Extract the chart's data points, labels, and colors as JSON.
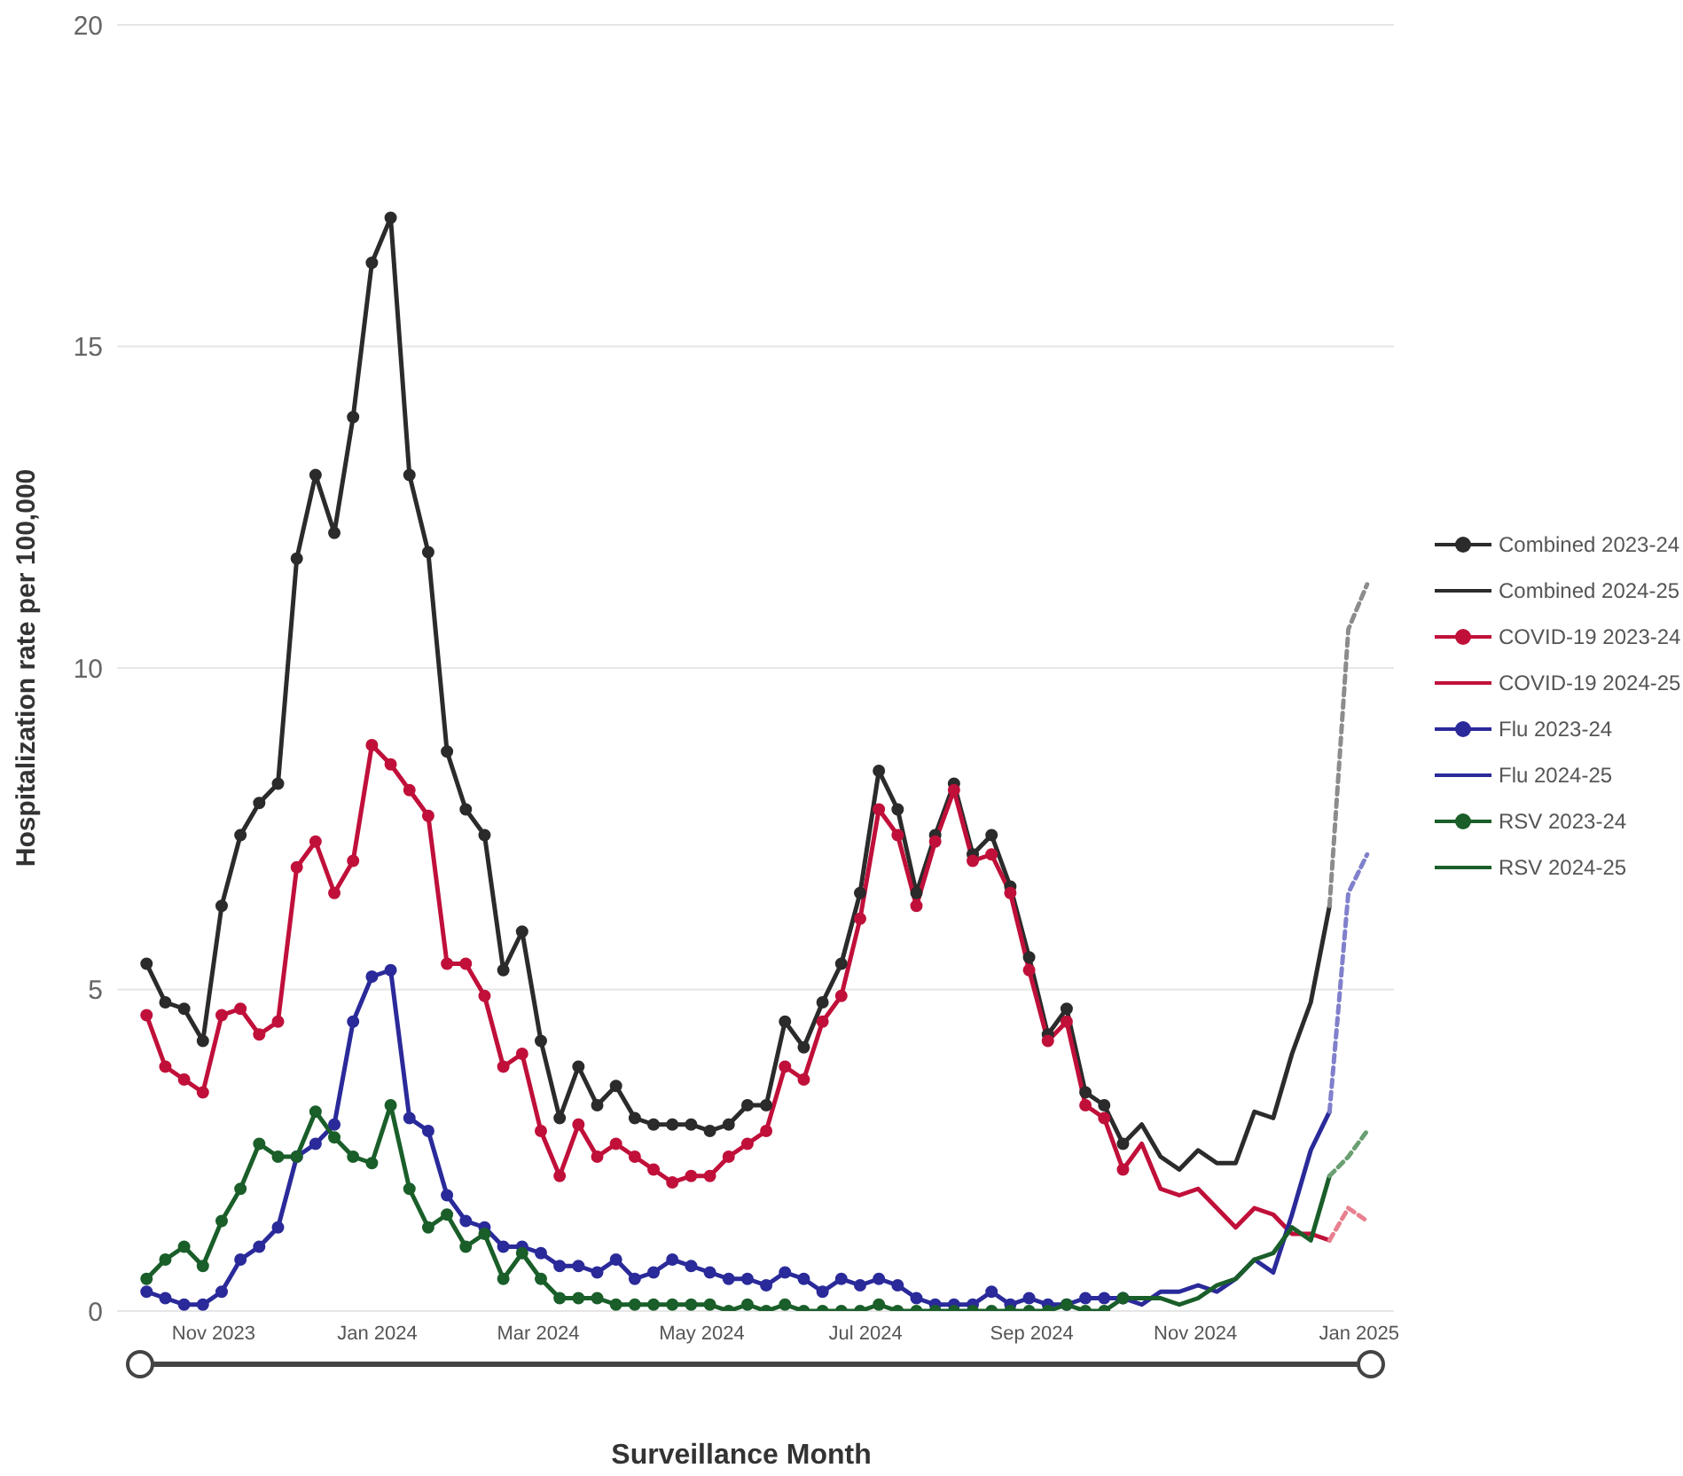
{
  "chart_data": {
    "type": "line",
    "xlabel": "Surveillance Month",
    "ylabel": "Hospitalization rate per 100,000",
    "xlim": [
      "2023-09-26",
      "2025-01-14"
    ],
    "xticks": [
      {
        "value": "2023-11-01",
        "label": "Nov 2023"
      },
      {
        "value": "2024-01-01",
        "label": "Jan 2024"
      },
      {
        "value": "2024-03-01",
        "label": "Mar 2024"
      },
      {
        "value": "2024-05-01",
        "label": "May 2024"
      },
      {
        "value": "2024-07-01",
        "label": "Jul 2024"
      },
      {
        "value": "2024-09-01",
        "label": "Sep 2024"
      },
      {
        "value": "2024-11-01",
        "label": "Nov 2024"
      },
      {
        "value": "2025-01-01",
        "label": "Jan 2025"
      }
    ],
    "ylim": [
      0,
      20
    ],
    "yticks": [
      0,
      5,
      10,
      15,
      20
    ],
    "grid": "y",
    "legend": "right",
    "series": [
      {
        "name": "Combined 2023-24",
        "color": "#2b2b2b",
        "marker": "circle",
        "line_style": "solid",
        "x": [
          "2023-10-07",
          "2023-10-14",
          "2023-10-21",
          "2023-10-28",
          "2023-11-04",
          "2023-11-11",
          "2023-11-18",
          "2023-11-25",
          "2023-12-02",
          "2023-12-09",
          "2023-12-16",
          "2023-12-23",
          "2023-12-30",
          "2024-01-06",
          "2024-01-13",
          "2024-01-20",
          "2024-01-27",
          "2024-02-03",
          "2024-02-10",
          "2024-02-17",
          "2024-02-24",
          "2024-03-02",
          "2024-03-09",
          "2024-03-16",
          "2024-03-23",
          "2024-03-30",
          "2024-04-06",
          "2024-04-13",
          "2024-04-20",
          "2024-04-27",
          "2024-05-04",
          "2024-05-11",
          "2024-05-18",
          "2024-05-25",
          "2024-06-01",
          "2024-06-08",
          "2024-06-15",
          "2024-06-22",
          "2024-06-29",
          "2024-07-06",
          "2024-07-13",
          "2024-07-20",
          "2024-07-27",
          "2024-08-03",
          "2024-08-10",
          "2024-08-17",
          "2024-08-24",
          "2024-08-31",
          "2024-09-07",
          "2024-09-14",
          "2024-09-21",
          "2024-09-28",
          "2024-10-05"
        ],
        "values": [
          5.4,
          4.8,
          4.7,
          4.2,
          6.3,
          7.4,
          7.9,
          8.2,
          11.7,
          13.0,
          12.1,
          13.9,
          16.3,
          17.0,
          13.0,
          11.8,
          8.7,
          7.8,
          7.4,
          5.3,
          5.9,
          4.2,
          3.0,
          3.8,
          3.2,
          3.5,
          3.0,
          2.9,
          2.9,
          2.9,
          2.8,
          2.9,
          3.2,
          3.2,
          4.5,
          4.1,
          4.8,
          5.4,
          6.5,
          8.4,
          7.8,
          6.5,
          7.4,
          8.2,
          7.1,
          7.4,
          6.6,
          5.5,
          4.3,
          4.7,
          3.4,
          3.2,
          2.6
        ]
      },
      {
        "name": "Combined 2024-25",
        "color": "#2b2b2b",
        "marker": "none",
        "line_style": "solid",
        "x": [
          "2024-10-05",
          "2024-10-12",
          "2024-10-19",
          "2024-10-26",
          "2024-11-02",
          "2024-11-09",
          "2024-11-16",
          "2024-11-23",
          "2024-11-30",
          "2024-12-07",
          "2024-12-14",
          "2024-12-21"
        ],
        "values": [
          2.6,
          2.9,
          2.4,
          2.2,
          2.5,
          2.3,
          2.3,
          3.1,
          3.0,
          4.0,
          4.8,
          6.3
        ]
      },
      {
        "name": "COVID-19 2023-24",
        "color": "#c0103a",
        "marker": "circle",
        "line_style": "solid",
        "x": [
          "2023-10-07",
          "2023-10-14",
          "2023-10-21",
          "2023-10-28",
          "2023-11-04",
          "2023-11-11",
          "2023-11-18",
          "2023-11-25",
          "2023-12-02",
          "2023-12-09",
          "2023-12-16",
          "2023-12-23",
          "2023-12-30",
          "2024-01-06",
          "2024-01-13",
          "2024-01-20",
          "2024-01-27",
          "2024-02-03",
          "2024-02-10",
          "2024-02-17",
          "2024-02-24",
          "2024-03-02",
          "2024-03-09",
          "2024-03-16",
          "2024-03-23",
          "2024-03-30",
          "2024-04-06",
          "2024-04-13",
          "2024-04-20",
          "2024-04-27",
          "2024-05-04",
          "2024-05-11",
          "2024-05-18",
          "2024-05-25",
          "2024-06-01",
          "2024-06-08",
          "2024-06-15",
          "2024-06-22",
          "2024-06-29",
          "2024-07-06",
          "2024-07-13",
          "2024-07-20",
          "2024-07-27",
          "2024-08-03",
          "2024-08-10",
          "2024-08-17",
          "2024-08-24",
          "2024-08-31",
          "2024-09-07",
          "2024-09-14",
          "2024-09-21",
          "2024-09-28",
          "2024-10-05"
        ],
        "values": [
          4.6,
          3.8,
          3.6,
          3.4,
          4.6,
          4.7,
          4.3,
          4.5,
          6.9,
          7.3,
          6.5,
          7.0,
          8.8,
          8.5,
          8.1,
          7.7,
          5.4,
          5.4,
          4.9,
          3.8,
          4.0,
          2.8,
          2.1,
          2.9,
          2.4,
          2.6,
          2.4,
          2.2,
          2.0,
          2.1,
          2.1,
          2.4,
          2.6,
          2.8,
          3.8,
          3.6,
          4.5,
          4.9,
          6.1,
          7.8,
          7.4,
          6.3,
          7.3,
          8.1,
          7.0,
          7.1,
          6.5,
          5.3,
          4.2,
          4.5,
          3.2,
          3.0,
          2.2
        ]
      },
      {
        "name": "COVID-19 2024-25",
        "color": "#c0103a",
        "marker": "none",
        "line_style": "solid",
        "x": [
          "2024-10-05",
          "2024-10-12",
          "2024-10-19",
          "2024-10-26",
          "2024-11-02",
          "2024-11-09",
          "2024-11-16",
          "2024-11-23",
          "2024-11-30",
          "2024-12-07",
          "2024-12-14",
          "2024-12-21"
        ],
        "values": [
          2.2,
          2.6,
          1.9,
          1.8,
          1.9,
          1.6,
          1.3,
          1.6,
          1.5,
          1.2,
          1.2,
          1.1
        ]
      },
      {
        "name": "Flu 2023-24",
        "color": "#2a2a9a",
        "marker": "circle",
        "line_style": "solid",
        "x": [
          "2023-10-07",
          "2023-10-14",
          "2023-10-21",
          "2023-10-28",
          "2023-11-04",
          "2023-11-11",
          "2023-11-18",
          "2023-11-25",
          "2023-12-02",
          "2023-12-09",
          "2023-12-16",
          "2023-12-23",
          "2023-12-30",
          "2024-01-06",
          "2024-01-13",
          "2024-01-20",
          "2024-01-27",
          "2024-02-03",
          "2024-02-10",
          "2024-02-17",
          "2024-02-24",
          "2024-03-02",
          "2024-03-09",
          "2024-03-16",
          "2024-03-23",
          "2024-03-30",
          "2024-04-06",
          "2024-04-13",
          "2024-04-20",
          "2024-04-27",
          "2024-05-04",
          "2024-05-11",
          "2024-05-18",
          "2024-05-25",
          "2024-06-01",
          "2024-06-08",
          "2024-06-15",
          "2024-06-22",
          "2024-06-29",
          "2024-07-06",
          "2024-07-13",
          "2024-07-20",
          "2024-07-27",
          "2024-08-03",
          "2024-08-10",
          "2024-08-17",
          "2024-08-24",
          "2024-08-31",
          "2024-09-07",
          "2024-09-14",
          "2024-09-21",
          "2024-09-28",
          "2024-10-05"
        ],
        "values": [
          0.3,
          0.2,
          0.1,
          0.1,
          0.3,
          0.8,
          1.0,
          1.3,
          2.4,
          2.6,
          2.9,
          4.5,
          5.2,
          5.3,
          3.0,
          2.8,
          1.8,
          1.4,
          1.3,
          1.0,
          1.0,
          0.9,
          0.7,
          0.7,
          0.6,
          0.8,
          0.5,
          0.6,
          0.8,
          0.7,
          0.6,
          0.5,
          0.5,
          0.4,
          0.6,
          0.5,
          0.3,
          0.5,
          0.4,
          0.5,
          0.4,
          0.2,
          0.1,
          0.1,
          0.1,
          0.3,
          0.1,
          0.2,
          0.1,
          0.1,
          0.2,
          0.2,
          0.2
        ]
      },
      {
        "name": "Flu 2024-25",
        "color": "#2a2a9a",
        "marker": "none",
        "line_style": "solid",
        "x": [
          "2024-10-05",
          "2024-10-12",
          "2024-10-19",
          "2024-10-26",
          "2024-11-02",
          "2024-11-09",
          "2024-11-16",
          "2024-11-23",
          "2024-11-30",
          "2024-12-07",
          "2024-12-14",
          "2024-12-21"
        ],
        "values": [
          0.2,
          0.1,
          0.3,
          0.3,
          0.4,
          0.3,
          0.5,
          0.8,
          0.6,
          1.5,
          2.5,
          3.1
        ]
      },
      {
        "name": "RSV 2023-24",
        "color": "#1a5e2a",
        "marker": "circle",
        "line_style": "solid",
        "x": [
          "2023-10-07",
          "2023-10-14",
          "2023-10-21",
          "2023-10-28",
          "2023-11-04",
          "2023-11-11",
          "2023-11-18",
          "2023-11-25",
          "2023-12-02",
          "2023-12-09",
          "2023-12-16",
          "2023-12-23",
          "2023-12-30",
          "2024-01-06",
          "2024-01-13",
          "2024-01-20",
          "2024-01-27",
          "2024-02-03",
          "2024-02-10",
          "2024-02-17",
          "2024-02-24",
          "2024-03-02",
          "2024-03-09",
          "2024-03-16",
          "2024-03-23",
          "2024-03-30",
          "2024-04-06",
          "2024-04-13",
          "2024-04-20",
          "2024-04-27",
          "2024-05-04",
          "2024-05-11",
          "2024-05-18",
          "2024-05-25",
          "2024-06-01",
          "2024-06-08",
          "2024-06-15",
          "2024-06-22",
          "2024-06-29",
          "2024-07-06",
          "2024-07-13",
          "2024-07-20",
          "2024-07-27",
          "2024-08-03",
          "2024-08-10",
          "2024-08-17",
          "2024-08-24",
          "2024-08-31",
          "2024-09-07",
          "2024-09-14",
          "2024-09-21",
          "2024-09-28",
          "2024-10-05"
        ],
        "values": [
          0.5,
          0.8,
          1.0,
          0.7,
          1.4,
          1.9,
          2.6,
          2.4,
          2.4,
          3.1,
          2.7,
          2.4,
          2.3,
          3.2,
          1.9,
          1.3,
          1.5,
          1.0,
          1.2,
          0.5,
          0.9,
          0.5,
          0.2,
          0.2,
          0.2,
          0.1,
          0.1,
          0.1,
          0.1,
          0.1,
          0.1,
          0.0,
          0.1,
          0.0,
          0.1,
          0.0,
          0.0,
          0.0,
          0.0,
          0.1,
          0.0,
          0.0,
          0.0,
          0.0,
          0.0,
          0.0,
          0.0,
          0.0,
          0.0,
          0.1,
          0.0,
          0.0,
          0.2
        ]
      },
      {
        "name": "RSV 2024-25",
        "color": "#1a5e2a",
        "marker": "none",
        "line_style": "solid",
        "x": [
          "2024-10-05",
          "2024-10-12",
          "2024-10-19",
          "2024-10-26",
          "2024-11-02",
          "2024-11-09",
          "2024-11-16",
          "2024-11-23",
          "2024-11-30",
          "2024-12-07",
          "2024-12-14",
          "2024-12-21"
        ],
        "values": [
          0.2,
          0.2,
          0.2,
          0.1,
          0.2,
          0.4,
          0.5,
          0.8,
          0.9,
          1.3,
          1.1,
          2.1
        ]
      },
      {
        "color": "#8c8c8c",
        "marker": "none",
        "line_style": "dashed",
        "x": [
          "2024-12-21",
          "2024-12-28",
          "2025-01-04"
        ],
        "values": [
          6.3,
          10.6,
          11.3
        ]
      },
      {
        "color": "#e8808f",
        "marker": "none",
        "line_style": "dashed",
        "x": [
          "2024-12-21",
          "2024-12-28",
          "2025-01-04"
        ],
        "values": [
          1.1,
          1.6,
          1.4
        ]
      },
      {
        "color": "#8080cc",
        "marker": "none",
        "line_style": "dashed",
        "x": [
          "2024-12-21",
          "2024-12-28",
          "2025-01-04"
        ],
        "values": [
          3.1,
          6.5,
          7.1
        ]
      },
      {
        "color": "#6a9f72",
        "marker": "none",
        "line_style": "dashed",
        "x": [
          "2024-12-21",
          "2024-12-28",
          "2025-01-04"
        ],
        "values": [
          2.1,
          2.4,
          2.8
        ]
      }
    ]
  }
}
